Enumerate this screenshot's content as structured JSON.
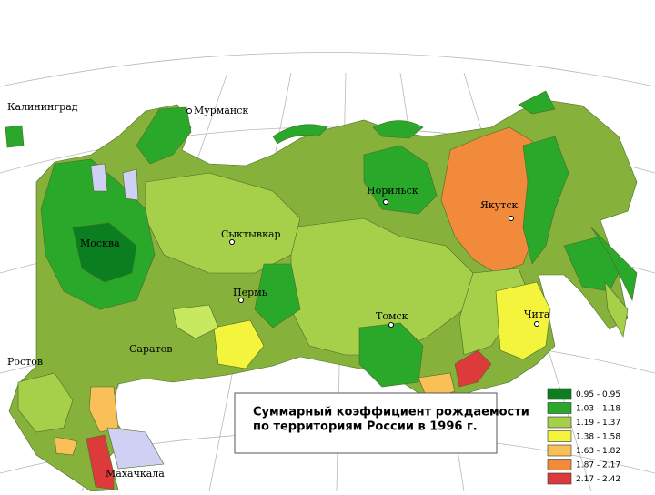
{
  "title_lines": [
    "Суммарный коэффициент рождаемости",
    "по территориям России в 1996 г."
  ],
  "cities": [
    {
      "label": "Калининград"
    },
    {
      "label": "Мурманск"
    },
    {
      "label": "Норильск"
    },
    {
      "label": "Якутск"
    },
    {
      "label": "Сыктывкар"
    },
    {
      "label": "Москва"
    },
    {
      "label": "Пермь"
    },
    {
      "label": "Томск"
    },
    {
      "label": "Чита"
    },
    {
      "label": "Саратов"
    },
    {
      "label": "Ростов"
    },
    {
      "label": "Махачкала"
    }
  ],
  "legend": [
    {
      "label": "0.95 - 0.95",
      "color": "#0b7f1f"
    },
    {
      "label": "1.03 - 1.18",
      "color": "#2aa82a"
    },
    {
      "label": "1.19 - 1.37",
      "color": "#a6d04a"
    },
    {
      "label": "1.38 - 1.58",
      "color": "#f4f43c"
    },
    {
      "label": "1.63 - 1.82",
      "color": "#f8c056"
    },
    {
      "label": "1.87 - 2.17",
      "color": "#f28a3c"
    },
    {
      "label": "2.17 - 2.42",
      "color": "#dd3b3b"
    }
  ]
}
